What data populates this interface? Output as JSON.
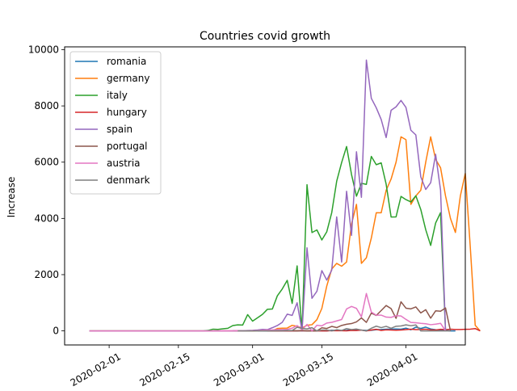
{
  "chart_data": {
    "type": "line",
    "title": "Countries covid growth",
    "xlabel": "",
    "ylabel": "Increase",
    "x_start": "2020-01-28",
    "xlim": [
      "2020-01-23",
      "2020-04-13"
    ],
    "ylim": [
      -500,
      10100
    ],
    "x_ticks": [
      {
        "date": "2020-02-01",
        "label": "2020-02-01"
      },
      {
        "date": "2020-02-15",
        "label": "2020-02-15"
      },
      {
        "date": "2020-03-01",
        "label": "2020-03-01"
      },
      {
        "date": "2020-03-15",
        "label": "2020-03-15"
      },
      {
        "date": "2020-04-01",
        "label": "2020-04-01"
      }
    ],
    "y_ticks": [
      0,
      2000,
      4000,
      6000,
      8000,
      10000
    ],
    "y_tick_labels": [
      "0",
      "2000",
      "4000",
      "6000",
      "8000",
      "10000"
    ],
    "grid": false,
    "legend_position": "upper-left",
    "series": [
      {
        "name": "romania",
        "color": "#1f77b4",
        "start": "2020-02-26",
        "values": [
          1,
          0,
          0,
          0,
          0,
          1,
          1,
          0,
          0,
          2,
          0,
          3,
          0,
          1,
          2,
          2,
          4,
          11,
          1,
          0,
          24,
          14,
          12,
          20,
          41,
          33,
          29,
          17,
          21,
          42,
          48,
          59,
          63,
          67,
          61,
          98,
          38,
          133,
          85,
          135,
          68,
          42,
          27,
          18,
          0,
          0
        ]
      },
      {
        "name": "germany",
        "color": "#ff7f0e",
        "start": "2020-01-28",
        "values": [
          0,
          0,
          0,
          0,
          0,
          0,
          0,
          0,
          0,
          0,
          0,
          0,
          0,
          0,
          0,
          0,
          0,
          0,
          0,
          0,
          0,
          0,
          0,
          0,
          0,
          0,
          0,
          0,
          0,
          0,
          2,
          1,
          5,
          0,
          5,
          26,
          17,
          5,
          85,
          95,
          101,
          198,
          165,
          105,
          200,
          220,
          400,
          800,
          1600,
          2200,
          2400,
          2300,
          2450,
          3800,
          4500,
          2400,
          2600,
          3300,
          4200,
          4200,
          5000,
          5400,
          6000,
          6900,
          6800,
          4500,
          4800,
          5000,
          6000,
          6900,
          6100,
          5800,
          4800,
          4000,
          3500,
          4800,
          5600,
          3000,
          200,
          0
        ]
      },
      {
        "name": "italy",
        "color": "#2ca02c",
        "start": "2020-01-28",
        "values": [
          0,
          0,
          0,
          0,
          0,
          0,
          0,
          0,
          0,
          0,
          0,
          0,
          0,
          0,
          0,
          0,
          0,
          0,
          0,
          0,
          0,
          0,
          0,
          0,
          16,
          62,
          54,
          74,
          92,
          189,
          213,
          208,
          578,
          346,
          466,
          587,
          769,
          778,
          1247,
          1492,
          1797,
          977,
          2313,
          0,
          5198,
          3497,
          3590,
          3233,
          3526,
          4207,
          5322,
          5986,
          6557,
          5560,
          4789,
          5249,
          5210,
          6203,
          5909,
          5974,
          5217,
          4050,
          4053,
          4782,
          4668,
          4585,
          4805,
          4316,
          3599,
          3039,
          3836,
          4204,
          0
        ]
      },
      {
        "name": "hungary",
        "color": "#d62728",
        "start": "2020-03-04",
        "values": [
          2,
          0,
          0,
          1,
          0,
          0,
          3,
          3,
          4,
          3,
          0,
          3,
          0,
          10,
          7,
          5,
          4,
          18,
          12,
          29,
          0,
          30,
          56,
          16,
          37,
          33,
          26,
          32,
          45,
          60,
          45,
          48,
          61,
          40,
          32,
          58,
          44,
          60,
          49,
          50,
          56,
          62,
          82,
          0
        ]
      },
      {
        "name": "spain",
        "color": "#9467bd",
        "start": "2020-01-28",
        "values": [
          0,
          0,
          0,
          0,
          0,
          0,
          0,
          0,
          0,
          0,
          0,
          0,
          0,
          0,
          0,
          0,
          0,
          0,
          0,
          0,
          0,
          0,
          0,
          0,
          0,
          0,
          0,
          0,
          0,
          0,
          2,
          7,
          13,
          19,
          33,
          54,
          44,
          114,
          190,
          304,
          595,
          550,
          1000,
          0,
          2955,
          1159,
          1407,
          2144,
          1806,
          2162,
          4053,
          2447,
          4964,
          3394,
          6368,
          4749,
          9630,
          8271,
          7933,
          7516,
          6875,
          7846,
          7967,
          8195,
          7947,
          7134,
          6969,
          5478,
          5029,
          5267,
          6278,
          5002,
          0
        ]
      },
      {
        "name": "portugal",
        "color": "#8c564b",
        "start": "2020-03-02",
        "values": [
          2,
          2,
          2,
          4,
          8,
          8,
          9,
          11,
          0,
          18,
          0,
          0,
          0,
          112,
          86,
          160,
          117,
          194,
          235,
          260,
          320,
          460,
          302,
          633,
          549,
          724,
          902,
          792,
          446,
          1035,
          808,
          783,
          852,
          638,
          754,
          452,
          712,
          699,
          815,
          0
        ]
      },
      {
        "name": "austria",
        "color": "#e377c2",
        "start": "2020-01-28",
        "values": [
          0,
          0,
          0,
          0,
          0,
          0,
          0,
          0,
          0,
          0,
          0,
          0,
          0,
          0,
          0,
          0,
          0,
          0,
          0,
          0,
          0,
          0,
          0,
          0,
          0,
          2,
          0,
          3,
          0,
          4,
          5,
          3,
          7,
          11,
          12,
          25,
          32,
          36,
          50,
          47,
          54,
          97,
          190,
          44,
          230,
          0,
          200,
          180,
          280,
          305,
          355,
          405,
          780,
          870,
          800,
          500,
          1330,
          670,
          560,
          560,
          490,
          480,
          540,
          530,
          410,
          300,
          290,
          270,
          255,
          220,
          240,
          270,
          0
        ]
      },
      {
        "name": "denmark",
        "color": "#7f7f7f",
        "start": "2020-02-27",
        "values": [
          1,
          0,
          2,
          0,
          1,
          2,
          3,
          1,
          5,
          10,
          17,
          13,
          128,
          90,
          70,
          114,
          0,
          30,
          30,
          0,
          41,
          16,
          82,
          47,
          66,
          28,
          0,
          93,
          168,
          116,
          163,
          93,
          165,
          175,
          214,
          184,
          210,
          0,
          0,
          0,
          0,
          0,
          0,
          0
        ]
      }
    ]
  }
}
